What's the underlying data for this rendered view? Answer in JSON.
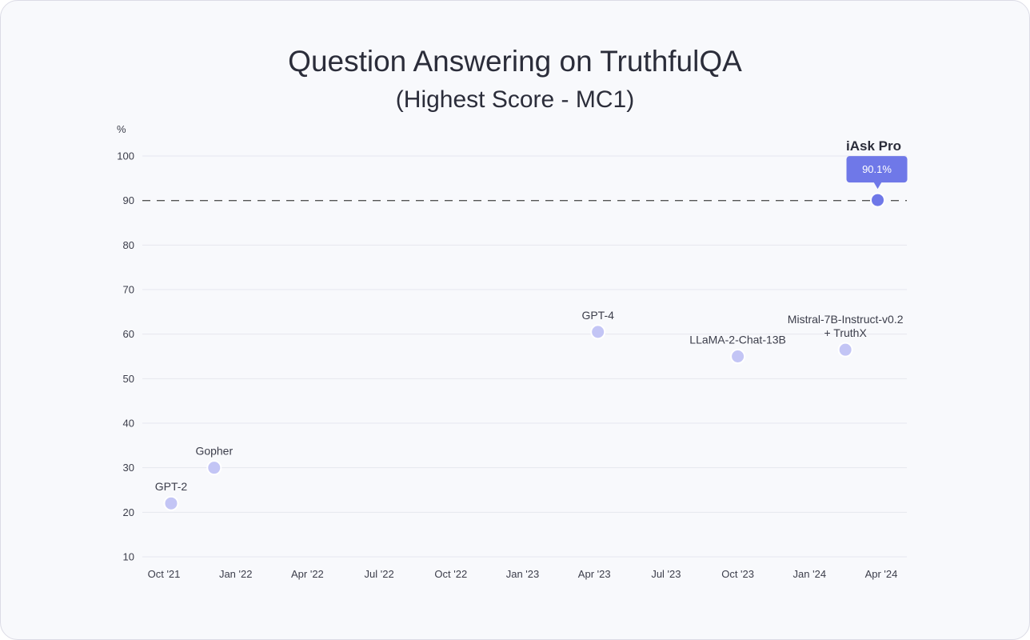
{
  "chart_data": {
    "type": "scatter",
    "title": "Question Answering on TruthfulQA",
    "subtitle": "(Highest Score - MC1)",
    "ylabel": "%",
    "xlabel": "",
    "ylim": [
      10,
      100
    ],
    "yticks": [
      10,
      20,
      30,
      40,
      50,
      60,
      70,
      80,
      90,
      100
    ],
    "xticks": [
      "Oct '21",
      "Jan '22",
      "Apr '22",
      "Jul '22",
      "Oct '22",
      "Jan '23",
      "Apr '23",
      "Jul '23",
      "Oct '23",
      "Jan '24",
      "Apr '24"
    ],
    "grid": true,
    "reference_line": {
      "y": 90,
      "style": "dashed"
    },
    "points": [
      {
        "label": "GPT-2",
        "x": 0.1,
        "y": 22
      },
      {
        "label": "Gopher",
        "x": 0.7,
        "y": 30
      },
      {
        "label": "GPT-4",
        "x": 6.05,
        "y": 60.5
      },
      {
        "label": "LLaMA-2-Chat-13B",
        "x": 8.0,
        "y": 55
      },
      {
        "label": "Mistral-7B-Instruct-v0.2\n+ TruthX",
        "x": 9.5,
        "y": 56.5
      },
      {
        "label": "iAsk Pro",
        "x": 9.95,
        "y": 90.1,
        "value_label": "90.1%",
        "highlight": true
      }
    ],
    "colors": {
      "point": "#c3c5f5",
      "highlight": "#6f78e8",
      "grid": "#e6e7ef",
      "reference": "#555555"
    }
  }
}
